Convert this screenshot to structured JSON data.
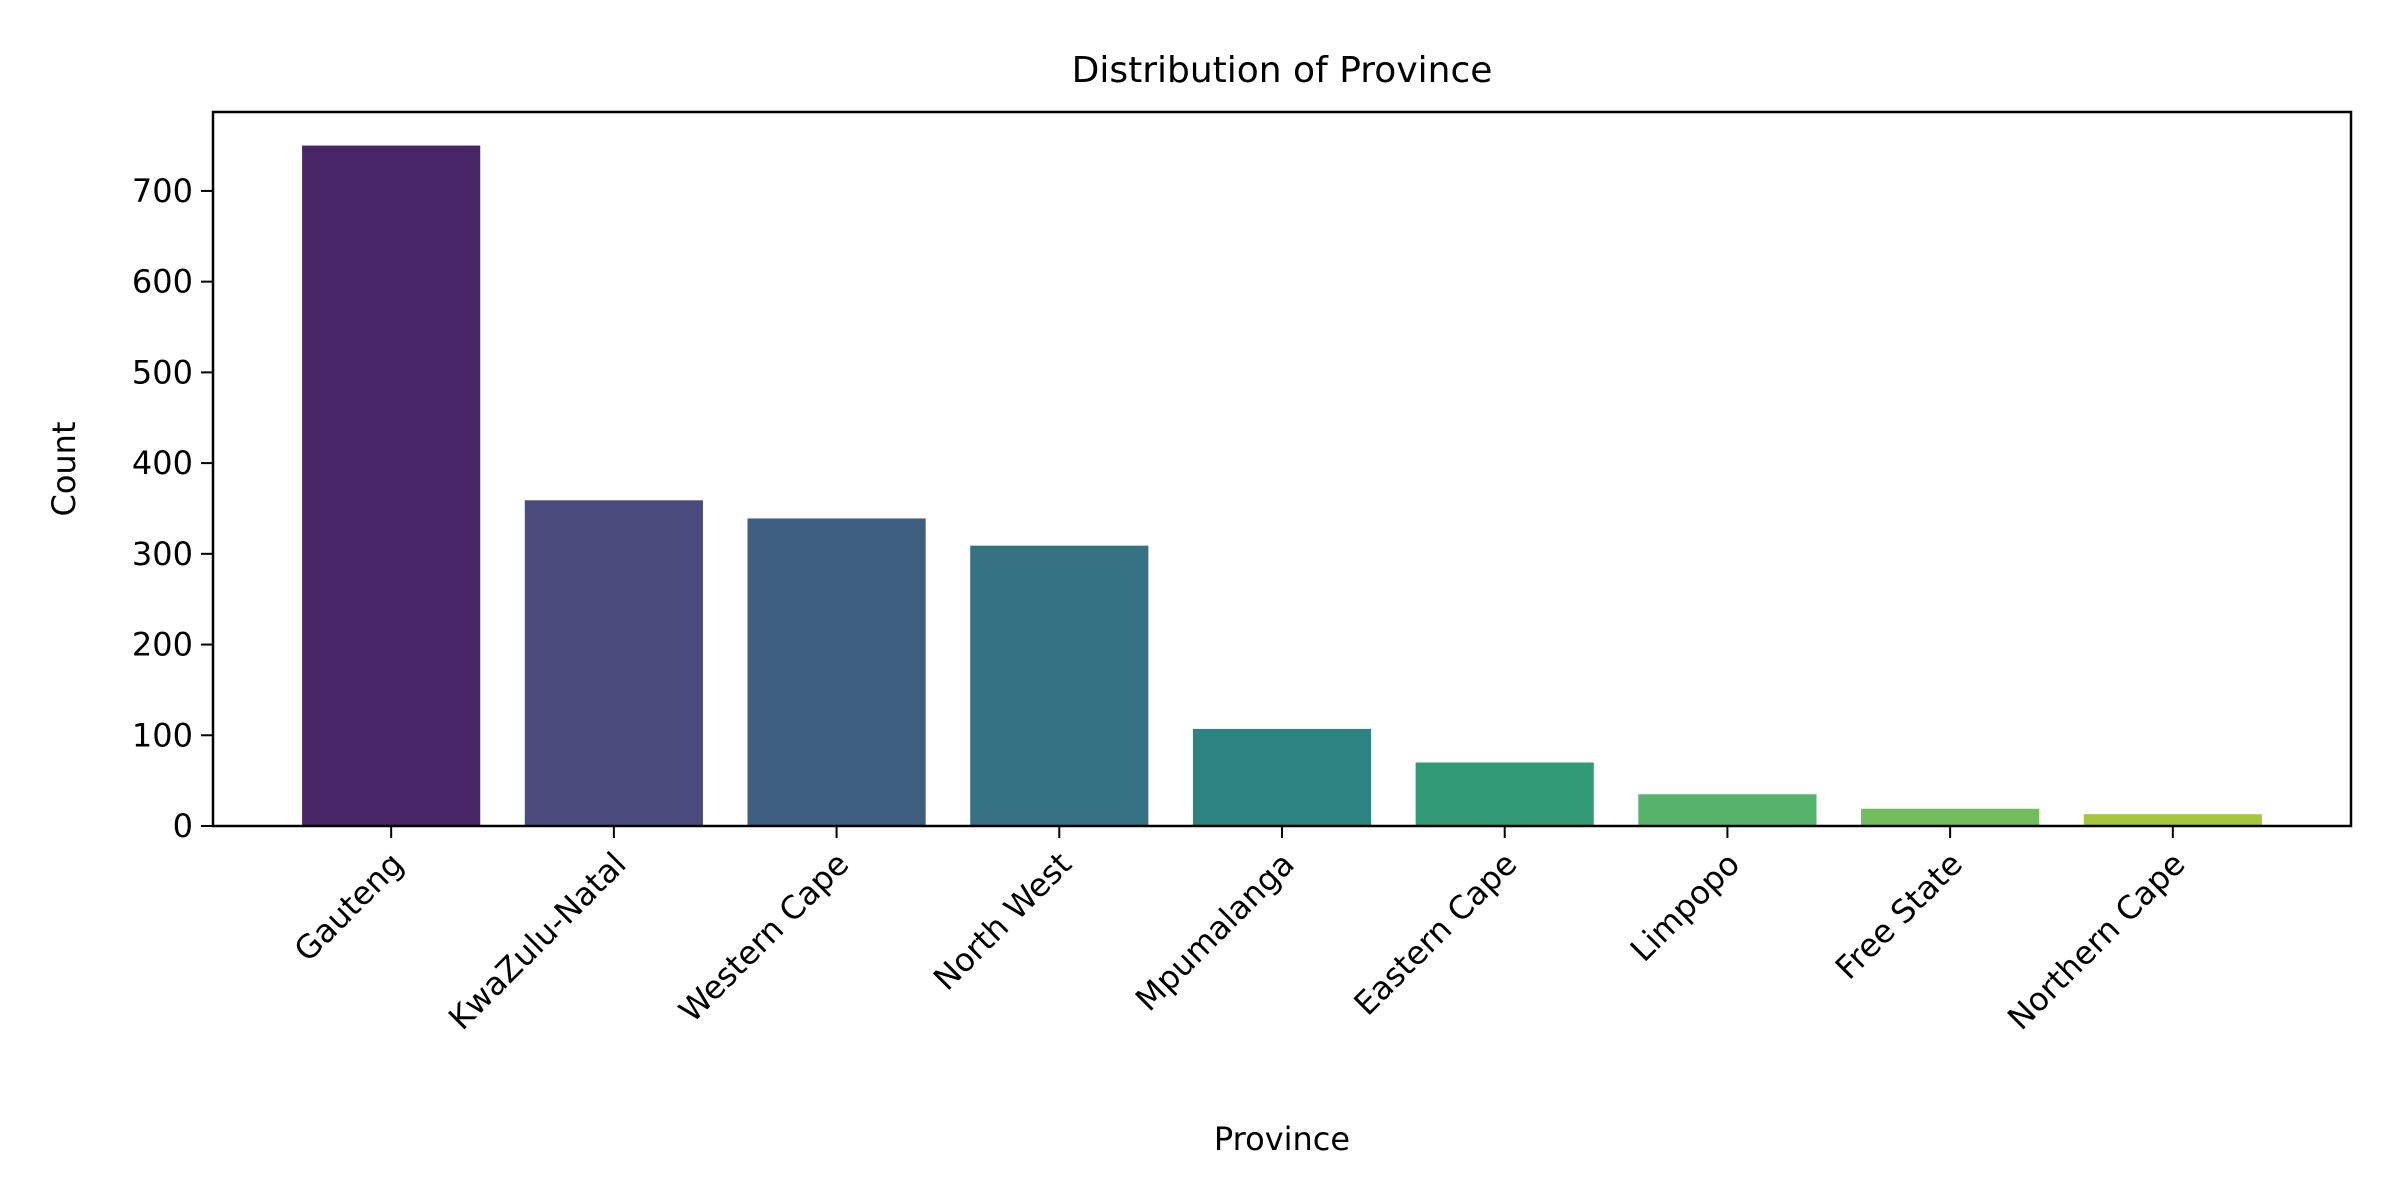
{
  "chart_data": {
    "type": "bar",
    "title": "Distribution of Province",
    "xlabel": "Province",
    "ylabel": "Count",
    "categories": [
      "Gauteng",
      "KwaZulu-Natal",
      "Western Cape",
      "North West",
      "Mpumalanga",
      "Eastern Cape",
      "Limpopo",
      "Free State",
      "Northern Cape"
    ],
    "values": [
      750,
      359,
      339,
      309,
      107,
      70,
      35,
      19,
      13
    ],
    "ylim": [
      0,
      787
    ],
    "yticks": [
      0,
      100,
      200,
      300,
      400,
      500,
      600,
      700
    ],
    "colors": [
      "#482566",
      "#484b7b",
      "#3f5f81",
      "#357283",
      "#2d837f",
      "#319b77",
      "#56b36c",
      "#72bd5d",
      "#a5c63e"
    ],
    "grid": false,
    "legend": "none",
    "xtick_rotation_deg": 45
  }
}
